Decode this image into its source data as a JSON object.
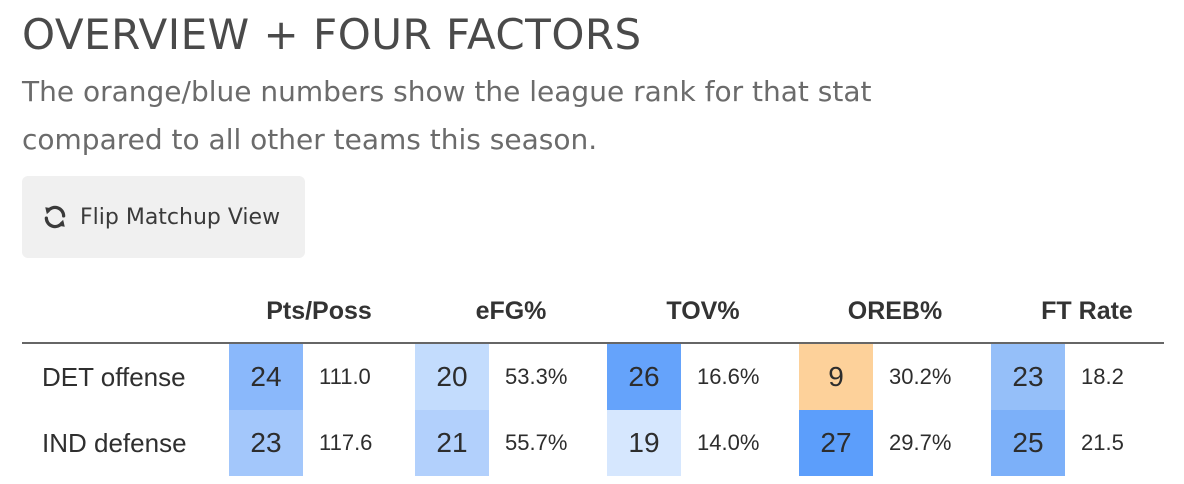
{
  "header": {
    "title": "OVERVIEW + FOUR FACTORS",
    "subtitle": "The orange/blue numbers show the league rank for that stat compared to all other teams this season."
  },
  "flip_button": {
    "label": "Flip Matchup View",
    "icon": "refresh-icon"
  },
  "table": {
    "columns": [
      "Pts/Poss",
      "eFG%",
      "TOV%",
      "OREB%",
      "FT Rate"
    ],
    "rows": [
      {
        "label": "DET offense",
        "cells": [
          {
            "rank": "24",
            "value": "111.0",
            "color": "#8ab8fb"
          },
          {
            "rank": "20",
            "value": "53.3%",
            "color": "#c3dcfd"
          },
          {
            "rank": "26",
            "value": "16.6%",
            "color": "#65a3fb"
          },
          {
            "rank": "9",
            "value": "30.2%",
            "color": "#fdd19a"
          },
          {
            "rank": "23",
            "value": "18.2",
            "color": "#95bff9"
          }
        ]
      },
      {
        "label": "IND defense",
        "cells": [
          {
            "rank": "23",
            "value": "117.6",
            "color": "#a3c7fb"
          },
          {
            "rank": "21",
            "value": "55.7%",
            "color": "#b2d0fc"
          },
          {
            "rank": "19",
            "value": "14.0%",
            "color": "#d6e7fe"
          },
          {
            "rank": "27",
            "value": "29.7%",
            "color": "#5c9efb"
          },
          {
            "rank": "25",
            "value": "21.5",
            "color": "#7cb0f9"
          }
        ]
      }
    ]
  }
}
